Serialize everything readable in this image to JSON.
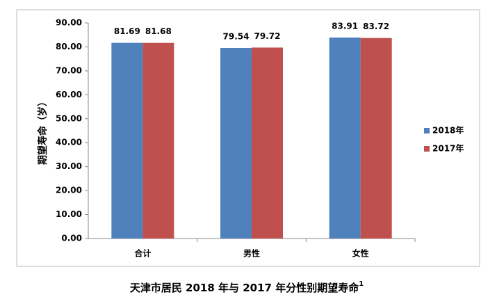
{
  "chart_data": {
    "type": "bar",
    "title": "天津市居民 2018 年与 2017 年分性别期望寿命",
    "title_note": "1",
    "y_label": "期望寿命（岁）",
    "categories": [
      "合计",
      "男性",
      "女性"
    ],
    "series": [
      {
        "name": "2018年",
        "color": "#4f81bd",
        "values": [
          81.69,
          79.54,
          83.91
        ]
      },
      {
        "name": "2017年",
        "color": "#c0504d",
        "values": [
          81.68,
          79.72,
          83.72
        ]
      }
    ],
    "ylim": [
      0,
      90
    ],
    "yticks": [
      {
        "value": 0,
        "label": "0.00"
      },
      {
        "value": 10,
        "label": "10.00"
      },
      {
        "value": 20,
        "label": "20.00"
      },
      {
        "value": 30,
        "label": "30.00"
      },
      {
        "value": 40,
        "label": "40.00"
      },
      {
        "value": 50,
        "label": "50.00"
      },
      {
        "value": 60,
        "label": "60.00"
      },
      {
        "value": 70,
        "label": "70.00"
      },
      {
        "value": 80,
        "label": "80.00"
      },
      {
        "value": 90,
        "label": "90.00"
      }
    ],
    "legend": "right",
    "grid": false
  }
}
